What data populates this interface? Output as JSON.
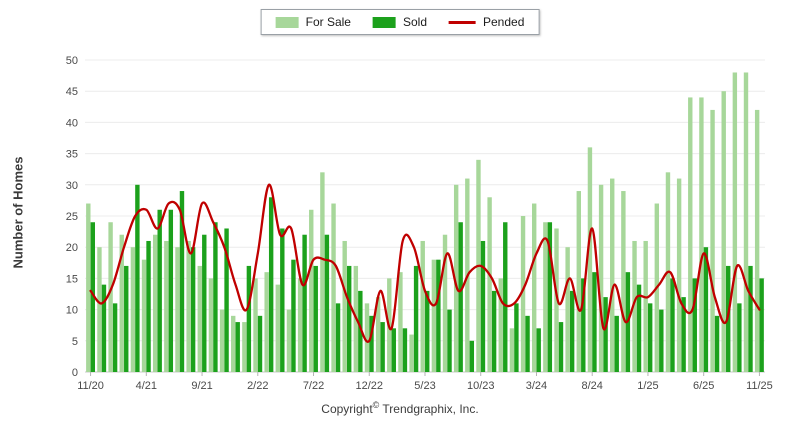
{
  "legend": {
    "for_sale_label": "For Sale",
    "sold_label": "Sold",
    "pended_label": "Pended"
  },
  "footer": {
    "copyright_prefix": "Copyright",
    "copyright_symbol": "©",
    "copyright_suffix": " Trendgraphix, Inc."
  },
  "colors": {
    "for_sale": "#a7d79a",
    "sold": "#1ca11c",
    "pended": "#c00000",
    "gridline": "#ececec",
    "axis_line": "#c9c9c9"
  },
  "chart_data": {
    "type": "bar",
    "title": "",
    "xlabel": "",
    "ylabel": "Number of Homes",
    "ylim": [
      0,
      50
    ],
    "grid": "horizontal",
    "legend_position": "top-center",
    "y_ticks": [
      0,
      5,
      10,
      15,
      20,
      25,
      30,
      35,
      40,
      45,
      50
    ],
    "x_tick_labels": [
      "11/20",
      "4/21",
      "9/21",
      "2/22",
      "7/22",
      "12/22",
      "5/23",
      "10/23",
      "3/24",
      "8/24",
      "1/25",
      "6/25",
      "11/25"
    ],
    "x_tick_positions": [
      0,
      5,
      10,
      15,
      20,
      25,
      30,
      35,
      40,
      45,
      50,
      55,
      60
    ],
    "categories": [
      "11/20",
      "12/20",
      "1/21",
      "2/21",
      "3/21",
      "4/21",
      "5/21",
      "6/21",
      "7/21",
      "8/21",
      "9/21",
      "10/21",
      "11/21",
      "12/21",
      "1/22",
      "2/22",
      "3/22",
      "4/22",
      "5/22",
      "6/22",
      "7/22",
      "8/22",
      "9/22",
      "10/22",
      "11/22",
      "12/22",
      "1/23",
      "2/23",
      "3/23",
      "4/23",
      "5/23",
      "6/23",
      "7/23",
      "8/23",
      "9/23",
      "10/23",
      "11/23",
      "12/23",
      "1/24",
      "2/24",
      "3/24",
      "4/24",
      "5/24",
      "6/24",
      "7/24",
      "8/24",
      "9/24",
      "10/24",
      "11/24",
      "12/24",
      "1/25",
      "2/25",
      "3/25",
      "4/25",
      "5/25",
      "6/25",
      "7/25",
      "8/25",
      "9/25",
      "10/25",
      "11/25"
    ],
    "series": [
      {
        "name": "For Sale",
        "type": "bar",
        "color": "#a7d79a",
        "values": [
          27,
          20,
          24,
          22,
          20,
          18,
          22,
          21,
          20,
          21,
          17,
          15,
          10,
          9,
          8,
          15,
          16,
          14,
          10,
          15,
          26,
          32,
          27,
          21,
          17,
          11,
          12,
          15,
          16,
          6,
          21,
          18,
          22,
          30,
          31,
          34,
          28,
          15,
          7,
          25,
          27,
          24,
          23,
          20,
          29,
          36,
          30,
          31,
          29,
          21,
          21,
          27,
          32,
          31,
          44,
          44,
          42,
          45,
          48,
          48,
          42
        ]
      },
      {
        "name": "Sold",
        "type": "bar",
        "color": "#1ca11c",
        "values": [
          24,
          14,
          11,
          17,
          30,
          21,
          26,
          26,
          29,
          20,
          22,
          24,
          23,
          8,
          17,
          9,
          28,
          23,
          18,
          22,
          17,
          22,
          11,
          17,
          13,
          9,
          8,
          7,
          7,
          17,
          13,
          18,
          10,
          24,
          5,
          21,
          13,
          24,
          11,
          9,
          7,
          24,
          8,
          13,
          15,
          16,
          12,
          9,
          16,
          14,
          11,
          10,
          15,
          12,
          15,
          20,
          9,
          17,
          11,
          17,
          15
        ]
      },
      {
        "name": "Pended",
        "type": "line",
        "color": "#c00000",
        "values": [
          13,
          11,
          14,
          20,
          25,
          26,
          23,
          27,
          26,
          19,
          27,
          24,
          20,
          14,
          10,
          19,
          30,
          22,
          23,
          14,
          18,
          18,
          17,
          12,
          8,
          5,
          13,
          7,
          21,
          20,
          13,
          11,
          19,
          13,
          16,
          17,
          15,
          11,
          11,
          14,
          19,
          21,
          11,
          15,
          10,
          23,
          7,
          14,
          8,
          12,
          12,
          14,
          16,
          11,
          10,
          19,
          12,
          8,
          17,
          13,
          10
        ]
      }
    ]
  }
}
